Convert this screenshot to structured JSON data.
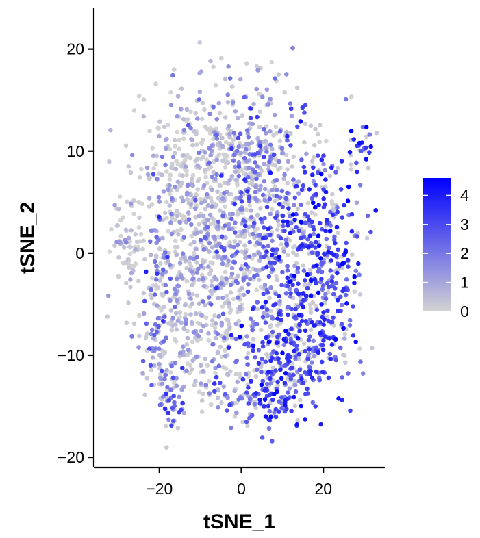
{
  "chart_data": {
    "type": "scatter",
    "xlabel": "tSNE_1",
    "ylabel": "tSNE_2",
    "xlim": [
      -36,
      35
    ],
    "ylim": [
      -21,
      24
    ],
    "xticks": [
      -20,
      0,
      20
    ],
    "yticks": [
      -20,
      -10,
      0,
      10,
      20
    ],
    "xtick_labels": [
      "−20",
      "0",
      "20"
    ],
    "ytick_labels": [
      "−20",
      "−10",
      "0",
      "10",
      "20"
    ],
    "grid": false,
    "legend": {
      "placement": "right",
      "type": "colorbar",
      "min": 0,
      "max": 4.6,
      "ticks": [
        0,
        1,
        2,
        3,
        4
      ],
      "tick_labels": [
        "0",
        "1",
        "2",
        "3",
        "4"
      ]
    },
    "colors": {
      "low": "#d3d3d3",
      "high": "#0000ff"
    },
    "points_note_free": true,
    "clusters": [
      {
        "cx": -12,
        "cy": 8,
        "sx": 7,
        "sy": 4,
        "n": 330,
        "expr": 0.3
      },
      {
        "cx": -9,
        "cy": 0,
        "sx": 8,
        "sy": 4,
        "n": 320,
        "expr": 0.5
      },
      {
        "cx": -10,
        "cy": -7,
        "sx": 7,
        "sy": 4,
        "n": 260,
        "expr": 0.6
      },
      {
        "cx": 3,
        "cy": 10,
        "sx": 6,
        "sy": 3,
        "n": 180,
        "expr": 1.1
      },
      {
        "cx": 4,
        "cy": 1,
        "sx": 5,
        "sy": 5,
        "n": 220,
        "expr": 2.0
      },
      {
        "cx": 18,
        "cy": -1,
        "sx": 6,
        "sy": 6,
        "n": 500,
        "expr": 3.0
      },
      {
        "cx": 10,
        "cy": -10,
        "sx": 6,
        "sy": 3,
        "n": 220,
        "expr": 2.9
      },
      {
        "cx": 7,
        "cy": -14,
        "sx": 3,
        "sy": 1.5,
        "n": 60,
        "expr": 3.2
      },
      {
        "cx": -28,
        "cy": 1,
        "sx": 2.2,
        "sy": 2,
        "n": 60,
        "expr": 0.1
      },
      {
        "cx": 29,
        "cy": 10.5,
        "sx": 1.5,
        "sy": 1.2,
        "n": 25,
        "expr": 3.3
      },
      {
        "cx": -17,
        "cy": -14.5,
        "sx": 1.3,
        "sy": 1.5,
        "n": 35,
        "expr": 2.6
      },
      {
        "cx": -20,
        "cy": -11,
        "sx": 2,
        "sy": 2.5,
        "n": 40,
        "expr": 1.8
      },
      {
        "cx": -21,
        "cy": -4,
        "sx": 1.5,
        "sy": 3,
        "n": 40,
        "expr": 2.0
      },
      {
        "cx": 0,
        "cy": -14,
        "sx": 4,
        "sy": 1.5,
        "n": 40,
        "expr": 1.5
      },
      {
        "cx": 0,
        "cy": 16,
        "sx": 5,
        "sy": 2,
        "n": 25,
        "expr": 0.8
      }
    ]
  }
}
